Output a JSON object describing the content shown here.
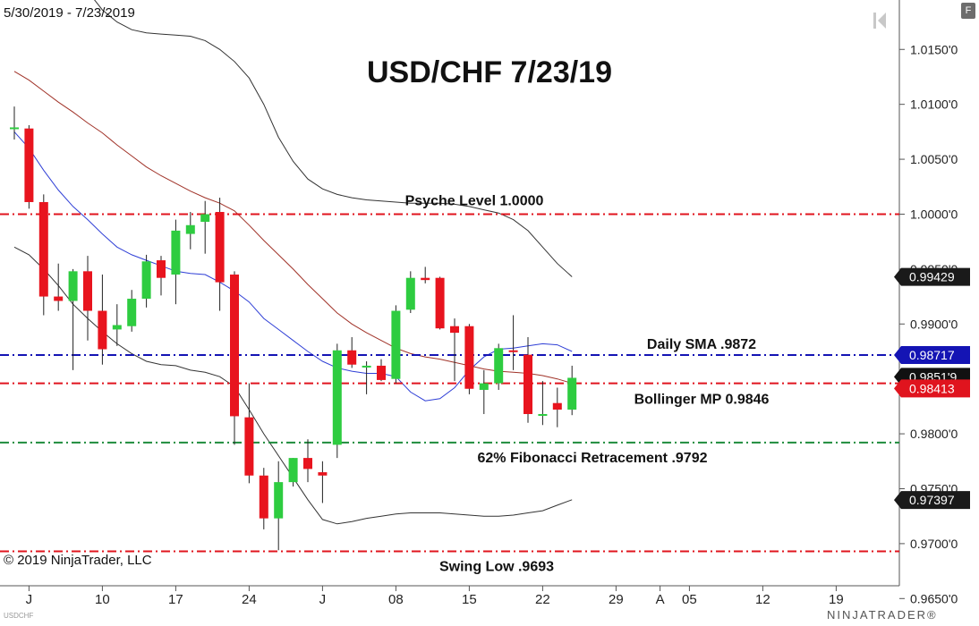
{
  "header": {
    "date_range": "5/30/2019 - 7/23/2019",
    "title": "USD/CHF 7/23/19",
    "f_button": "F"
  },
  "footer": {
    "copyright": "© 2019 NinjaTrader, LLC",
    "instrument": "USDCHF",
    "brand": "NINJATRADER®"
  },
  "chart_data": {
    "type": "candlestick",
    "title": "USD/CHF 7/23/19",
    "ylim": [
      0.9625,
      1.0195
    ],
    "y_ticks": [
      {
        "value": 1.015,
        "label": "1.0150'0"
      },
      {
        "value": 1.01,
        "label": "1.0100'0"
      },
      {
        "value": 1.005,
        "label": "1.0050'0"
      },
      {
        "value": 1.0,
        "label": "1.0000'0"
      },
      {
        "value": 0.995,
        "label": "0.9950'0"
      },
      {
        "value": 0.99,
        "label": "0.9900'0"
      },
      {
        "value": 0.985,
        "label": "0.9850'0"
      },
      {
        "value": 0.98,
        "label": "0.9800'0"
      },
      {
        "value": 0.975,
        "label": "0.9750'0"
      },
      {
        "value": 0.97,
        "label": "0.9700'0"
      },
      {
        "value": 0.965,
        "label": "0.9650'0"
      }
    ],
    "x_ticks": [
      {
        "bar": 1,
        "label": "J"
      },
      {
        "bar": 6,
        "label": "10"
      },
      {
        "bar": 11,
        "label": "17"
      },
      {
        "bar": 16,
        "label": "24"
      },
      {
        "bar": 21,
        "label": "J"
      },
      {
        "bar": 26,
        "label": "08"
      },
      {
        "bar": 31,
        "label": "15"
      },
      {
        "bar": 36,
        "label": "22"
      },
      {
        "bar": 41,
        "label": "29"
      },
      {
        "bar": 44,
        "label": "A"
      },
      {
        "bar": 46,
        "label": "05"
      },
      {
        "bar": 51,
        "label": "12"
      },
      {
        "bar": 56,
        "label": "19"
      }
    ],
    "candles": [
      {
        "o": 1.0078,
        "h": 1.0098,
        "l": 1.0068,
        "c": 1.0079
      },
      {
        "o": 1.0078,
        "h": 1.0081,
        "l": 1.0005,
        "c": 1.0011
      },
      {
        "o": 1.0011,
        "h": 1.0018,
        "l": 0.9908,
        "c": 0.9925
      },
      {
        "o": 0.9925,
        "h": 0.9955,
        "l": 0.9912,
        "c": 0.9921
      },
      {
        "o": 0.9921,
        "h": 0.995,
        "l": 0.9858,
        "c": 0.9948
      },
      {
        "o": 0.9948,
        "h": 0.9962,
        "l": 0.9885,
        "c": 0.9912
      },
      {
        "o": 0.9912,
        "h": 0.9945,
        "l": 0.9863,
        "c": 0.9877
      },
      {
        "o": 0.9895,
        "h": 0.9918,
        "l": 0.988,
        "c": 0.9899
      },
      {
        "o": 0.9898,
        "h": 0.9931,
        "l": 0.9893,
        "c": 0.9923
      },
      {
        "o": 0.9923,
        "h": 0.9963,
        "l": 0.9915,
        "c": 0.9957
      },
      {
        "o": 0.9958,
        "h": 0.9962,
        "l": 0.9926,
        "c": 0.9942
      },
      {
        "o": 0.9945,
        "h": 0.9995,
        "l": 0.9918,
        "c": 0.9985
      },
      {
        "o": 0.9982,
        "h": 1.0002,
        "l": 0.9968,
        "c": 0.999
      },
      {
        "o": 0.9993,
        "h": 1.0012,
        "l": 0.9964,
        "c": 1.0
      },
      {
        "o": 1.0002,
        "h": 1.0015,
        "l": 0.9912,
        "c": 0.9938
      },
      {
        "o": 0.9945,
        "h": 0.9948,
        "l": 0.979,
        "c": 0.9816
      },
      {
        "o": 0.9815,
        "h": 0.9846,
        "l": 0.9755,
        "c": 0.9762
      },
      {
        "o": 0.9762,
        "h": 0.9769,
        "l": 0.9713,
        "c": 0.9723
      },
      {
        "o": 0.9723,
        "h": 0.9775,
        "l": 0.9694,
        "c": 0.9756
      },
      {
        "o": 0.9756,
        "h": 0.9778,
        "l": 0.9752,
        "c": 0.9778
      },
      {
        "o": 0.9778,
        "h": 0.9795,
        "l": 0.9756,
        "c": 0.9768
      },
      {
        "o": 0.9765,
        "h": 0.9775,
        "l": 0.9737,
        "c": 0.9762
      },
      {
        "o": 0.979,
        "h": 0.9882,
        "l": 0.9778,
        "c": 0.9876
      },
      {
        "o": 0.9876,
        "h": 0.9888,
        "l": 0.986,
        "c": 0.9863
      },
      {
        "o": 0.9862,
        "h": 0.9866,
        "l": 0.9836,
        "c": 0.9862
      },
      {
        "o": 0.9862,
        "h": 0.9868,
        "l": 0.9848,
        "c": 0.9849
      },
      {
        "o": 0.985,
        "h": 0.9917,
        "l": 0.9846,
        "c": 0.9912
      },
      {
        "o": 0.9913,
        "h": 0.9948,
        "l": 0.991,
        "c": 0.9942
      },
      {
        "o": 0.9942,
        "h": 0.9952,
        "l": 0.9937,
        "c": 0.994
      },
      {
        "o": 0.9942,
        "h": 0.9943,
        "l": 0.9895,
        "c": 0.9896
      },
      {
        "o": 0.9898,
        "h": 0.9905,
        "l": 0.9848,
        "c": 0.9892
      },
      {
        "o": 0.9898,
        "h": 0.99,
        "l": 0.9836,
        "c": 0.9841
      },
      {
        "o": 0.984,
        "h": 0.9858,
        "l": 0.9818,
        "c": 0.9846
      },
      {
        "o": 0.9846,
        "h": 0.9882,
        "l": 0.984,
        "c": 0.9878
      },
      {
        "o": 0.9876,
        "h": 0.9908,
        "l": 0.9858,
        "c": 0.9875
      },
      {
        "o": 0.9872,
        "h": 0.9888,
        "l": 0.981,
        "c": 0.9818
      },
      {
        "o": 0.9818,
        "h": 0.9848,
        "l": 0.9808,
        "c": 0.9818
      },
      {
        "o": 0.9828,
        "h": 0.9842,
        "l": 0.9806,
        "c": 0.9822
      },
      {
        "o": 0.9822,
        "h": 0.9862,
        "l": 0.9817,
        "c": 0.9851
      }
    ],
    "bollinger_upper": [
      1.029,
      1.0281,
      1.0267,
      1.0248,
      1.0227,
      1.0203,
      1.0186,
      1.0175,
      1.0168,
      1.0165,
      1.0164,
      1.0163,
      1.0162,
      1.0158,
      1.015,
      1.0139,
      1.0124,
      1.01,
      1.007,
      1.0048,
      1.0032,
      1.0023,
      1.0018,
      1.0015,
      1.0013,
      1.0012,
      1.0011,
      1.001,
      1.001,
      1.001,
      1.0009,
      1.0007,
      1.0004,
      1.0001,
      0.9995,
      0.9985,
      0.997,
      0.9955,
      0.9943
    ],
    "bollinger_mid": [
      1.013,
      1.0122,
      1.0112,
      1.0102,
      1.0093,
      1.0083,
      1.0074,
      1.0063,
      1.0053,
      1.0043,
      1.0035,
      1.0028,
      1.0021,
      1.0015,
      1.001,
      1.0003,
      0.999,
      0.9976,
      0.9963,
      0.995,
      0.9936,
      0.9923,
      0.991,
      0.99,
      0.9892,
      0.9885,
      0.9878,
      0.9873,
      0.987,
      0.9868,
      0.9865,
      0.9862,
      0.9859,
      0.9857,
      0.9856,
      0.9855,
      0.9853,
      0.985,
      0.9846
    ],
    "bollinger_lower": [
      0.997,
      0.9963,
      0.995,
      0.9935,
      0.9918,
      0.9905,
      0.9893,
      0.9882,
      0.9873,
      0.9866,
      0.9863,
      0.9862,
      0.9858,
      0.9856,
      0.9852,
      0.9843,
      0.9822,
      0.98,
      0.978,
      0.976,
      0.974,
      0.9722,
      0.9718,
      0.972,
      0.9723,
      0.9725,
      0.9727,
      0.9728,
      0.9728,
      0.9728,
      0.9727,
      0.9726,
      0.9725,
      0.9725,
      0.9726,
      0.9728,
      0.973,
      0.9735,
      0.974
    ],
    "sma": [
      1.0075,
      1.006,
      1.004,
      1.0022,
      1.0007,
      0.9995,
      0.9982,
      0.997,
      0.9963,
      0.9958,
      0.9953,
      0.9948,
      0.9946,
      0.9945,
      0.9938,
      0.993,
      0.992,
      0.9905,
      0.9895,
      0.9885,
      0.9875,
      0.9866,
      0.986,
      0.9857,
      0.9855,
      0.9855,
      0.9852,
      0.9838,
      0.983,
      0.9832,
      0.9842,
      0.9858,
      0.987,
      0.9877,
      0.9878,
      0.988,
      0.9882,
      0.9881,
      0.9875
    ],
    "levels": [
      {
        "value": 1.0,
        "label": "Psyche Level 1.0000",
        "color": "#e0141e",
        "dash": "dashdot"
      },
      {
        "value": 0.98717,
        "label": "Daily SMA .9872",
        "color": "#1414b4",
        "dash": "dashdot"
      },
      {
        "value": 0.9846,
        "label": "Bollinger MP 0.9846",
        "color": "#e0141e",
        "dash": "dashdot"
      },
      {
        "value": 0.9792,
        "label": "62% Fibonacci Retracement .9792",
        "color": "#1e8c3c",
        "dash": "dashdot"
      },
      {
        "value": 0.9693,
        "label": "Swing Low .9693",
        "color": "#e0141e",
        "dash": "dashdot"
      }
    ],
    "price_markers": [
      {
        "value": 0.99429,
        "label": "0.99429",
        "bg": "#1a1a1a",
        "fg": "#ffffff"
      },
      {
        "value": 0.98717,
        "label": "0.98717",
        "bg": "#1414b4",
        "fg": "#ffffff"
      },
      {
        "value": 0.98519,
        "label": "0.9851'9",
        "bg": "#111111",
        "fg": "#ffffff"
      },
      {
        "value": 0.98413,
        "label": "0.98413",
        "bg": "#e0141e",
        "fg": "#ffffff"
      },
      {
        "value": 0.97397,
        "label": "0.97397",
        "bg": "#1a1a1a",
        "fg": "#ffffff"
      }
    ],
    "colors": {
      "up": "#2ecc40",
      "down": "#e8141e",
      "sma": "#2f3fd6",
      "bollinger_mid": "#a03228",
      "bollinger_band": "#333333",
      "axis": "#555555"
    }
  }
}
